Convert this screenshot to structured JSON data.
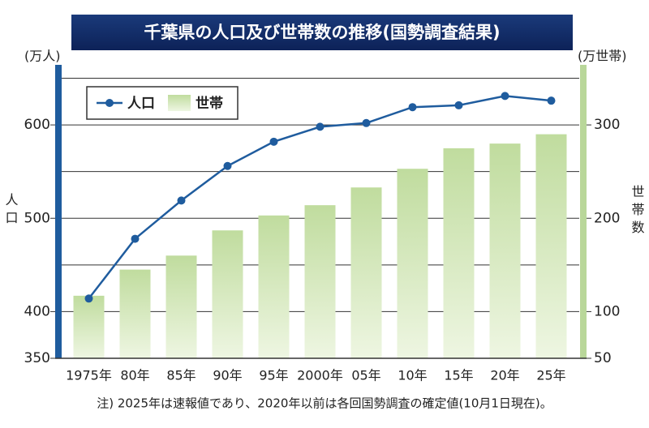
{
  "chart_data": {
    "type": "bar_line",
    "title": "千葉県の人口及び世帯数の推移(国勢調査結果)",
    "y_unit": "(万人)",
    "y2_unit": "(万世帯)",
    "y_label": "人口",
    "y2_label": "世帯数",
    "note": "注) 2025年は速報値であり、2020年以前は各回国勢調査の確定値(10月1日現在)。",
    "categories": [
      "1975年",
      "80年",
      "85年",
      "90年",
      "95年",
      "2000年",
      "05年",
      "10年",
      "15年",
      "20年",
      "25年"
    ],
    "series": [
      {
        "name": "人口",
        "type": "line",
        "color": "#1f5c9e",
        "axis": "y",
        "values": [
          414,
          478,
          519,
          556,
          582,
          598,
          602,
          619,
          621,
          631,
          626
        ]
      },
      {
        "name": "世帯",
        "type": "bar",
        "color": "#c9e2ad",
        "axis": "y2",
        "values": [
          117,
          145,
          160,
          187,
          203,
          214,
          233,
          253,
          275,
          280,
          290
        ]
      }
    ],
    "ylim": [
      350,
      660
    ],
    "yticks": [
      350,
      400,
      500,
      600
    ],
    "y2lim": [
      50,
      360
    ],
    "y2ticks": [
      50,
      100,
      200,
      300
    ],
    "grid_lines": [
      400,
      450,
      500,
      550,
      600,
      650
    ],
    "legend": "upper left"
  }
}
